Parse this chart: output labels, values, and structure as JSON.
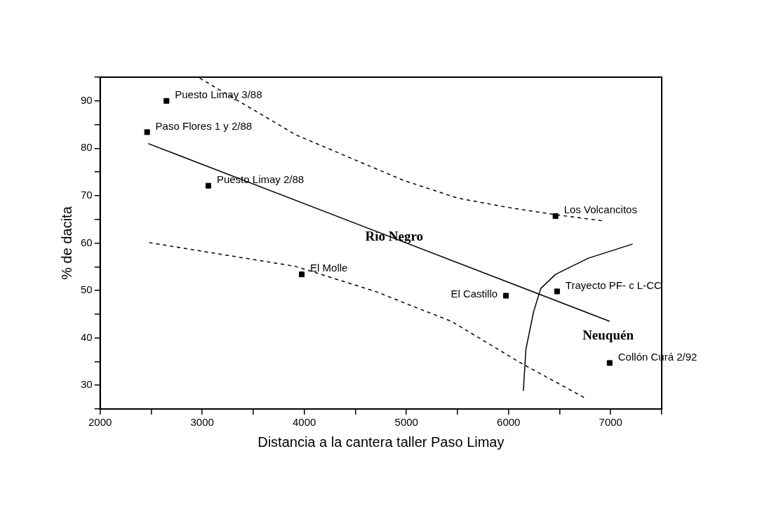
{
  "chart_data": {
    "type": "scatter",
    "xlabel": "Distancia a la cantera taller Paso Limay",
    "ylabel": "% de dacita",
    "xlim": [
      2000,
      7500
    ],
    "xticks": [
      2000,
      {
        "value": 2500,
        "label": null
      },
      3000,
      {
        "value": 3500,
        "label": null
      },
      4000,
      {
        "value": 4500,
        "label": null
      },
      5000,
      {
        "value": 5500,
        "label": null
      },
      6000,
      {
        "value": 6500,
        "label": null
      },
      7000,
      {
        "value": 7500,
        "label": null
      }
    ],
    "ylim": [
      25,
      95
    ],
    "yticks": [
      {
        "value": 25,
        "label": null
      },
      30,
      {
        "value": 35,
        "label": null
      },
      40,
      {
        "value": 45,
        "label": null
      },
      50,
      {
        "value": 55,
        "label": null
      },
      60,
      {
        "value": 65,
        "label": null
      },
      70,
      {
        "value": 75,
        "label": null
      },
      80,
      {
        "value": 85,
        "label": null
      },
      90,
      {
        "value": 95,
        "label": null
      }
    ],
    "legend": false,
    "grid": false,
    "marker": "square",
    "series": [
      {
        "color": "#000000",
        "x": [
          2650,
          2460,
          3060,
          3975,
          6460,
          5975,
          6475,
          6990
        ],
        "values": [
          90,
          83.4,
          72.1,
          53.4,
          65.7,
          48.9,
          49.8,
          34.7
        ]
      },
      {
        "type": "line",
        "color": "#000000",
        "line_style": "solid",
        "marker": "none",
        "x": [
          2470,
          6990
        ],
        "values": [
          81,
          43.5
        ]
      },
      {
        "type": "line",
        "color": "#000000",
        "line_style": "dashed",
        "marker": "none",
        "x": [
          2975,
          3920,
          4975,
          5500,
          6000,
          6460,
          6920
        ],
        "values": [
          94.8,
          82.8,
          73.2,
          69.5,
          67.5,
          66,
          64.7
        ]
      },
      {
        "type": "line",
        "color": "#000000",
        "line_style": "dashed",
        "marker": "none",
        "x": [
          2480,
          3910,
          4000,
          4710,
          5000,
          5440,
          6120,
          6750
        ],
        "values": [
          60.1,
          55.1,
          54.5,
          49.7,
          47.2,
          43.5,
          34.7,
          27.3
        ]
      },
      {
        "type": "line",
        "color": "#000000",
        "line_style": "solid",
        "marker": "none",
        "x": [
          6145,
          6170,
          6245,
          6315,
          6460,
          6780,
          7215
        ],
        "values": [
          28.8,
          37.6,
          45.5,
          50.4,
          53.4,
          56.8,
          59.8
        ]
      }
    ],
    "annotations": [
      {
        "text": "Puesto Limay 3/88",
        "x": 2650,
        "y": 90
      },
      {
        "text": "Paso Flores 1 y 2/88",
        "x": 2460,
        "y": 83.4
      },
      {
        "text": "Puesto Limay 2/88",
        "x": 3060,
        "y": 72.1
      },
      {
        "text": "El Molle",
        "x": 3975,
        "y": 53.4
      },
      {
        "text": "Los Volcancitos",
        "x": 6460,
        "y": 65.7
      },
      {
        "text": "El Castillo",
        "x": 5975,
        "y": 48.9
      },
      {
        "text": "Trayecto PF- c L-CC",
        "x": 6475,
        "y": 49.8
      },
      {
        "text": "Collón Curá 2/92",
        "x": 6990,
        "y": 34.7
      },
      {
        "text": "Río Negro",
        "x": 4880,
        "y": 61.3
      },
      "Neuquén"
    ]
  }
}
